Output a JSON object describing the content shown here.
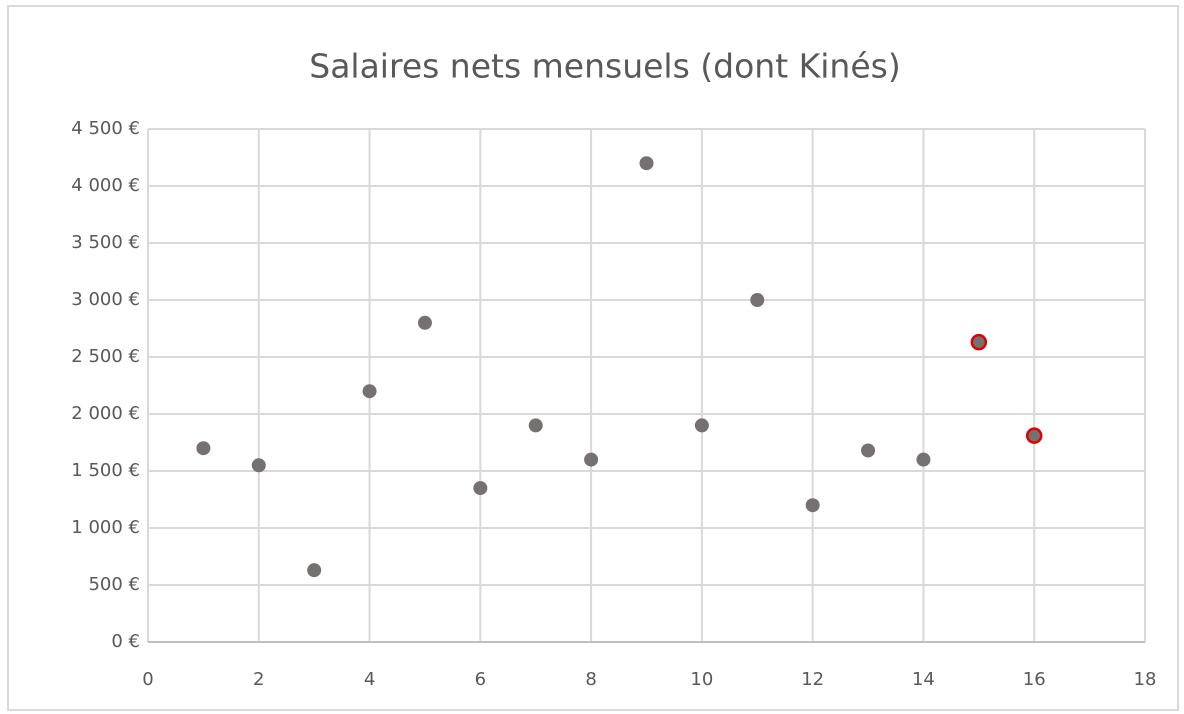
{
  "chart_data": {
    "type": "scatter",
    "title": "Salaires nets mensuels (dont Kinés)",
    "x": [
      1,
      2,
      3,
      4,
      5,
      6,
      7,
      8,
      9,
      10,
      11,
      12,
      13,
      14,
      15,
      16
    ],
    "values": [
      1700,
      1550,
      630,
      2200,
      2800,
      1350,
      1900,
      1600,
      4200,
      1900,
      3000,
      1200,
      1680,
      1600,
      2630,
      1810
    ],
    "color": "#767171",
    "edge_colors": [
      null,
      null,
      null,
      null,
      null,
      null,
      null,
      null,
      null,
      null,
      null,
      null,
      null,
      null,
      "#e00000",
      "#e00000"
    ],
    "xlim": [
      0,
      18
    ],
    "xticks": [
      0,
      2,
      4,
      6,
      8,
      10,
      12,
      14,
      16,
      18
    ],
    "ylim": [
      0,
      4500
    ],
    "yticks": [
      {
        "value": 0,
        "label": "0 €"
      },
      {
        "value": 500,
        "label": "500 €"
      },
      {
        "value": 1000,
        "label": "1 000 €"
      },
      {
        "value": 1500,
        "label": "1 500 €"
      },
      {
        "value": 2000,
        "label": "2 000 €"
      },
      {
        "value": 2500,
        "label": "2 500 €"
      },
      {
        "value": 3000,
        "label": "3 000 €"
      },
      {
        "value": 3500,
        "label": "3 500 €"
      },
      {
        "value": 4000,
        "label": "4 000 €"
      },
      {
        "value": 4500,
        "label": "4 500 €"
      }
    ],
    "grid": true
  }
}
